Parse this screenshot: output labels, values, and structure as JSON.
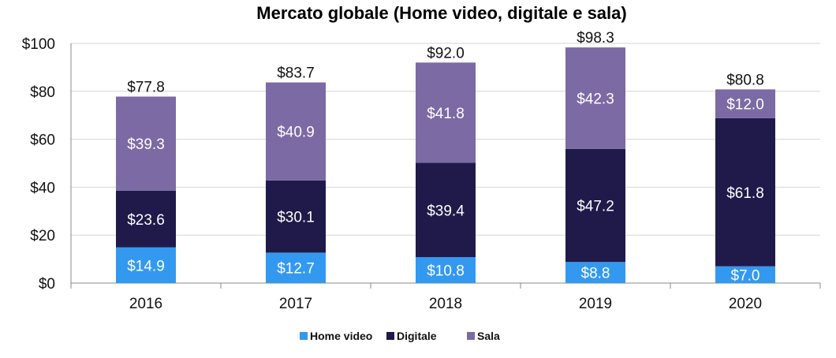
{
  "chart_data": {
    "type": "bar",
    "stacked": true,
    "title": "Mercato globale (Home video, digitale e sala)",
    "xlabel": "",
    "ylabel": "",
    "categories": [
      "2016",
      "2017",
      "2018",
      "2019",
      "2020"
    ],
    "ylim": [
      0,
      100
    ],
    "y_ticks": [
      "$0",
      "$20",
      "$40",
      "$60",
      "$80",
      "$100"
    ],
    "series": [
      {
        "name": "Home video",
        "color": "#3399f0",
        "values": [
          14.9,
          12.7,
          10.8,
          8.8,
          7.0
        ],
        "labels": [
          "$14.9",
          "$12.7",
          "$10.8",
          "$8.8",
          "$7.0"
        ]
      },
      {
        "name": "Digitale",
        "color": "#1f1a4a",
        "values": [
          23.6,
          30.1,
          39.4,
          47.2,
          61.8
        ],
        "labels": [
          "$23.6",
          "$30.1",
          "$39.4",
          "$47.2",
          "$61.8"
        ]
      },
      {
        "name": "Sala",
        "color": "#7b6aa4",
        "values": [
          39.3,
          40.9,
          41.8,
          42.3,
          12.0
        ],
        "labels": [
          "$39.3",
          "$40.9",
          "$41.8",
          "$42.3",
          "$12.0"
        ]
      }
    ],
    "totals": [
      "$77.8",
      "$83.7",
      "$92.0",
      "$98.3",
      "$80.8"
    ],
    "grid": true,
    "legend_position": "bottom"
  }
}
